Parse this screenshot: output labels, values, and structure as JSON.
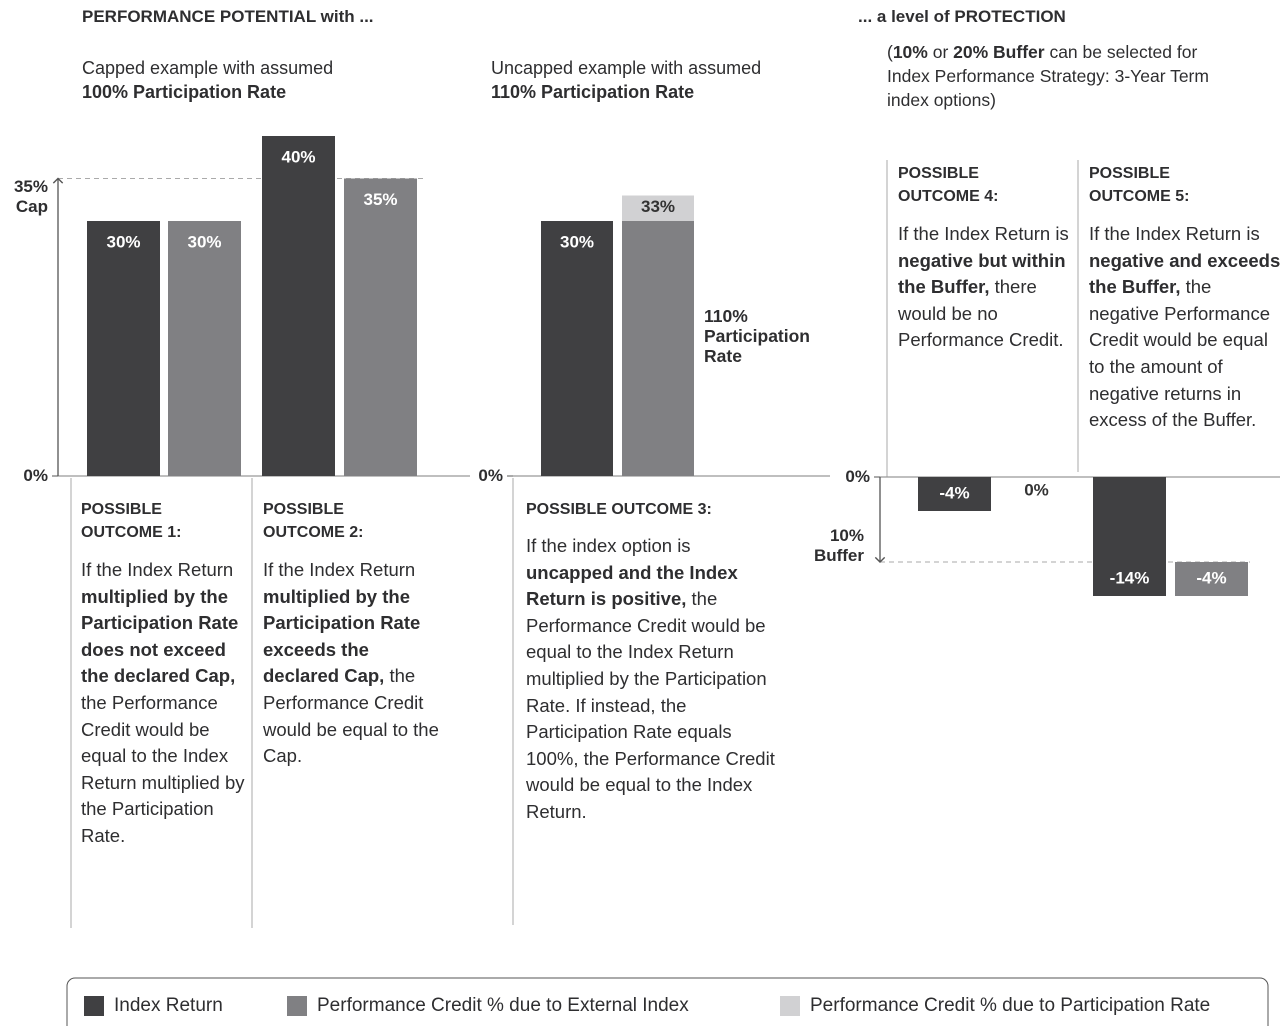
{
  "heading_left": "PERFORMANCE POTENTIAL with ...",
  "heading_right": "... a level of PROTECTION",
  "subtitles": [
    [
      "Capped example with assumed",
      "100% Participation Rate"
    ],
    [
      "Uncapped example with assumed",
      "110% Participation Rate"
    ]
  ],
  "protection_note": [
    {
      "text": "("
    },
    {
      "text": "10%",
      "bold": true
    },
    {
      "text": " or "
    },
    {
      "text": "20% Buffer",
      "bold": true
    },
    {
      "text": " can be selected for Index Performance Strategy: 3-Year Term index options)"
    }
  ],
  "series": [
    {
      "name": "Index Return",
      "color": "#404042"
    },
    {
      "name": "Performance Credit % due to External Index",
      "color": "#808083"
    },
    {
      "name": "Performance Credit % due to Participation Rate",
      "color": "#d1d1d3"
    }
  ],
  "charts": [
    {
      "type": "bar",
      "ylim": [
        0,
        40
      ],
      "yticks": [
        {
          "value": 0,
          "label": "0%"
        },
        {
          "value": 35,
          "label": "35%"
        }
      ],
      "tick_note": "Cap",
      "series_values": [
        {
          "values": [
            30,
            40
          ],
          "value_labels": [
            "30%",
            "40%"
          ]
        },
        {
          "values": [
            30,
            35
          ],
          "value_labels": [
            "30%",
            "35%"
          ]
        }
      ]
    },
    {
      "type": "bar",
      "ylim": [
        0,
        40
      ],
      "yticks": [
        {
          "value": 0,
          "label": "0%"
        }
      ],
      "series_values": [
        {
          "values": [
            30
          ],
          "value_labels": [
            "30%"
          ]
        },
        {
          "values": [
            30
          ]
        },
        {
          "values": [
            3
          ]
        }
      ],
      "stack_labels": [
        "33%"
      ],
      "annotation": "110% Participation Rate"
    },
    {
      "type": "bar",
      "ylim": [
        -14,
        0
      ],
      "yticks": [
        {
          "value": 0,
          "label": "0%"
        },
        {
          "value": -10,
          "label": "10%"
        }
      ],
      "tick_note": "Buffer",
      "series_values": [
        {
          "values": [
            -4,
            -14
          ],
          "value_labels": [
            "-4%",
            "-14%"
          ]
        },
        {
          "values": [
            0,
            -4
          ],
          "value_labels": [
            "0%",
            "-4%"
          ]
        }
      ]
    }
  ],
  "outcomes": [
    {
      "title": "POSSIBLE OUTCOME 1:",
      "text": [
        {
          "text": "If the Index Return "
        },
        {
          "text": "multiplied by the Participation Rate does not exceed the declared Cap,",
          "bold": true
        },
        {
          "text": " the Performance Credit would be equal to the Index Return multiplied by the Participation Rate."
        }
      ]
    },
    {
      "title": "POSSIBLE OUTCOME 2:",
      "text": [
        {
          "text": "If the Index Return "
        },
        {
          "text": "multiplied by the Participation Rate exceeds the declared Cap,",
          "bold": true
        },
        {
          "text": " the Performance Credit would be equal to the Cap."
        }
      ]
    },
    {
      "title": "POSSIBLE OUTCOME 3:",
      "text": [
        {
          "text": "If the index option is "
        },
        {
          "text": "uncapped and the Index Return is positive,",
          "bold": true
        },
        {
          "text": " the Performance Credit would be equal to the Index Return multiplied by the Participation Rate. If instead, the Participation Rate equals 100%, the Performance Credit would be equal to the Index Return."
        }
      ]
    },
    {
      "title": "POSSIBLE OUTCOME 4:",
      "text": [
        {
          "text": "If the Index Return is "
        },
        {
          "text": "negative but within the Buffer,",
          "bold": true
        },
        {
          "text": " there would be no Performance Credit."
        }
      ]
    },
    {
      "title": "POSSIBLE OUTCOME 5:",
      "text": [
        {
          "text": "If the Index Return is "
        },
        {
          "text": "negative and exceeds the Buffer,",
          "bold": true
        },
        {
          "text": " the negative Performance Credit would be equal to the amount of negative returns in excess of the Buffer."
        }
      ]
    }
  ]
}
